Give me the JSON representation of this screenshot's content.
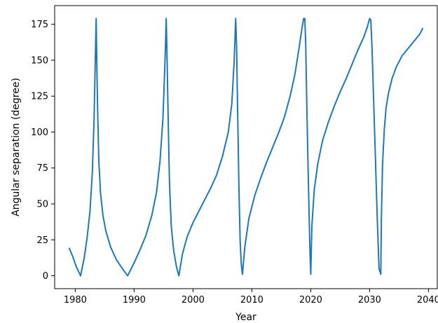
{
  "chart_data": {
    "type": "line",
    "title": "",
    "xlabel": "Year",
    "ylabel": "Angular separation (degree)",
    "xlim": [
      1976.5,
      2041.5
    ],
    "ylim": [
      -9,
      188
    ],
    "xticks": [
      1980,
      1990,
      2000,
      2010,
      2020,
      2030,
      2040
    ],
    "yticks": [
      0,
      25,
      50,
      75,
      100,
      125,
      150,
      175
    ],
    "grid": false,
    "legend": "none",
    "colors": {
      "line": "#1f77b4",
      "axis": "#000000"
    },
    "series": [
      {
        "x": [
          1979.0,
          1979.6,
          1980.2,
          1980.9,
          1981.5,
          1982.0,
          1982.5,
          1982.9,
          1983.2,
          1983.4,
          1983.55,
          1983.65,
          1983.8,
          1984.0,
          1984.3,
          1984.7,
          1985.2,
          1986.0,
          1987.0,
          1988.0,
          1988.9,
          1990.0,
          1991.0,
          1992.0,
          1993.0,
          1993.8,
          1994.4,
          1994.9,
          1995.25,
          1995.45,
          1995.6,
          1995.8,
          1996.0,
          1996.3,
          1996.7,
          1997.2,
          1997.6,
          1998.2,
          1999.0,
          2000.0,
          2001.0,
          2002.0,
          2003.0,
          2004.0,
          2005.0,
          2006.0,
          2006.6,
          2007.0,
          2007.25,
          2007.4,
          2007.6,
          2007.8,
          2008.0,
          2008.2,
          2008.4,
          2008.8,
          2009.5,
          2010.5,
          2011.5,
          2012.5,
          2013.5,
          2014.5,
          2015.5,
          2016.5,
          2017.3,
          2018.0,
          2018.5,
          2018.8,
          2019.0,
          2019.15,
          2019.35,
          2019.6,
          2019.85,
          2020.0,
          2020.2,
          2020.6,
          2021.2,
          2022.0,
          2023.0,
          2024.0,
          2025.0,
          2026.0,
          2027.0,
          2028.0,
          2029.0,
          2029.6,
          2030.0,
          2030.2,
          2030.4,
          2030.7,
          2031.0,
          2031.3,
          2031.6,
          2031.9,
          2032.0,
          2032.2,
          2032.5,
          2032.8,
          2033.2,
          2033.8,
          2034.5,
          2035.5,
          2036.5,
          2037.5,
          2038.5,
          2039.0
        ],
        "y": [
          19,
          13,
          6,
          0,
          12,
          26,
          45,
          72,
          110,
          150,
          179,
          150,
          115,
          80,
          57,
          42,
          31,
          20,
          11,
          5,
          0,
          9,
          18,
          28,
          42,
          58,
          80,
          110,
          150,
          179,
          150,
          105,
          65,
          35,
          18,
          6,
          0,
          15,
          27,
          37,
          45,
          53,
          61,
          70,
          83,
          100,
          120,
          150,
          179,
          160,
          110,
          62,
          25,
          8,
          1,
          20,
          40,
          56,
          68,
          79,
          89,
          99,
          110,
          125,
          140,
          158,
          172,
          179,
          179,
          160,
          115,
          65,
          20,
          1,
          35,
          60,
          78,
          94,
          107,
          118,
          128,
          137,
          147,
          157,
          166,
          173,
          179,
          178,
          160,
          120,
          80,
          40,
          5,
          1,
          40,
          78,
          102,
          117,
          127,
          137,
          145,
          153,
          158,
          163,
          168,
          172
        ]
      }
    ]
  }
}
